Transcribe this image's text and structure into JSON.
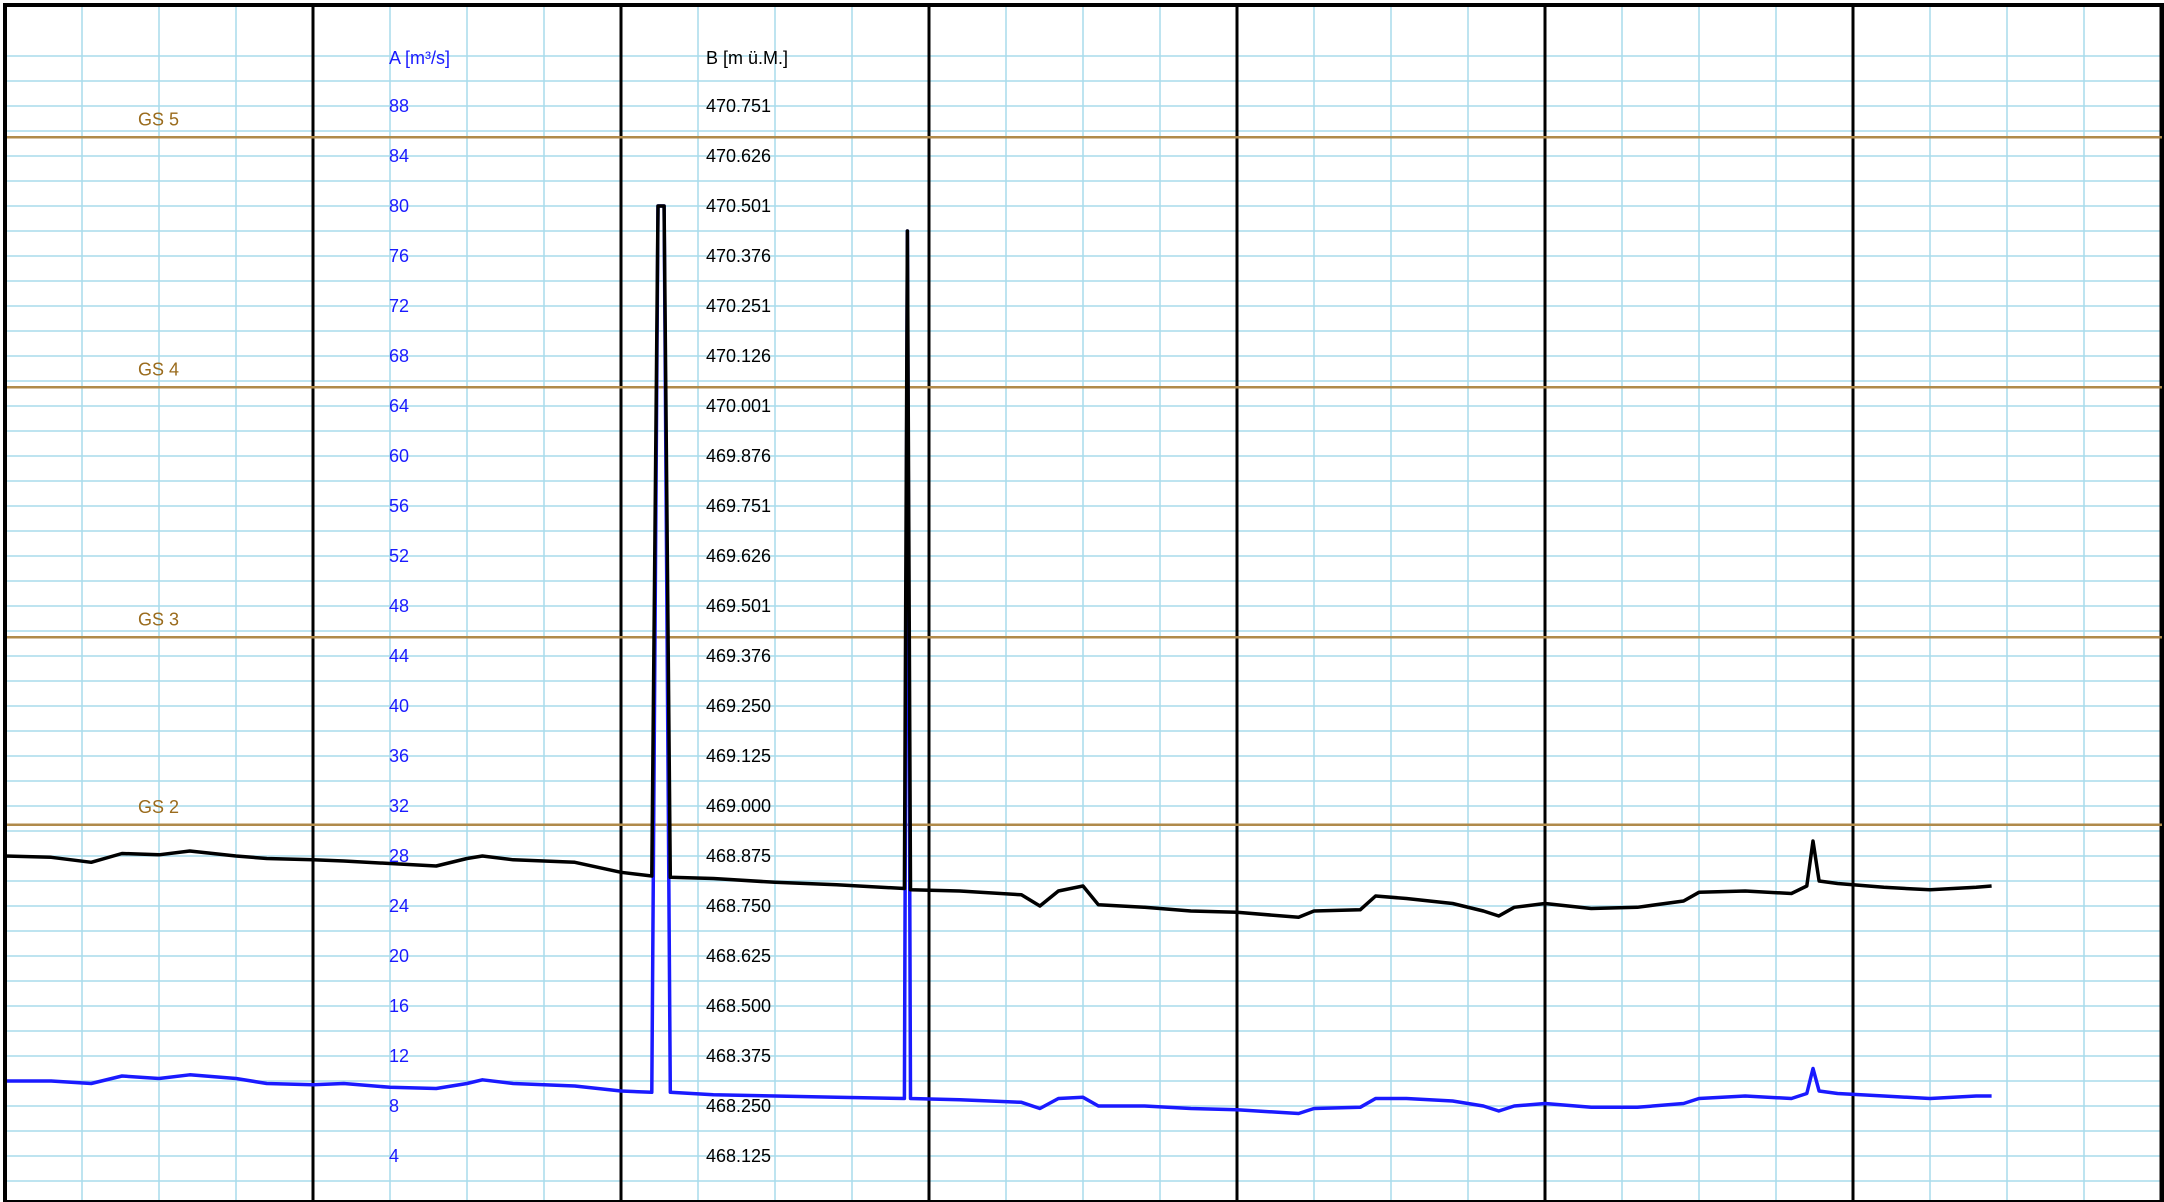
{
  "chart_data": {
    "type": "line",
    "axis_a": {
      "label": "A [m³/s]",
      "ticks": [
        88,
        84,
        80,
        76,
        72,
        68,
        64,
        60,
        56,
        52,
        48,
        44,
        40,
        36,
        32,
        28,
        24,
        20,
        16,
        12,
        8,
        4
      ],
      "range": [
        0,
        92
      ],
      "color": "#1a1aff"
    },
    "axis_b": {
      "label": "B [m ü.M.]",
      "ticks": [
        "470.751",
        "470.626",
        "470.501",
        "470.376",
        "470.251",
        "470.126",
        "470.001",
        "469.876",
        "469.751",
        "469.626",
        "469.501",
        "469.376",
        "469.250",
        "469.125",
        "469.000",
        "468.875",
        "468.750",
        "468.625",
        "468.500",
        "468.375",
        "468.250",
        "468.125"
      ],
      "color": "#000000"
    },
    "thresholds": [
      {
        "label": "GS 5",
        "value": 85.5
      },
      {
        "label": "GS 4",
        "value": 65.5
      },
      {
        "label": "GS 3",
        "value": 45.5
      },
      {
        "label": "GS 2",
        "value": 30.5
      }
    ],
    "threshold_color": "#b08a4a",
    "grid_color": "#a9dcec",
    "major_grid_color": "#000000",
    "x_range": [
      0,
      7
    ],
    "series": [
      {
        "color": "#1a1aff",
        "points": [
          [
            0.0,
            10.0
          ],
          [
            0.15,
            10.0
          ],
          [
            0.28,
            9.8
          ],
          [
            0.38,
            10.4
          ],
          [
            0.5,
            10.2
          ],
          [
            0.6,
            10.5
          ],
          [
            0.75,
            10.2
          ],
          [
            0.85,
            9.8
          ],
          [
            1.0,
            9.7
          ],
          [
            1.1,
            9.8
          ],
          [
            1.25,
            9.5
          ],
          [
            1.4,
            9.4
          ],
          [
            1.5,
            9.8
          ],
          [
            1.55,
            10.1
          ],
          [
            1.65,
            9.8
          ],
          [
            1.85,
            9.6
          ],
          [
            2.0,
            9.2
          ],
          [
            2.1,
            9.1
          ],
          [
            2.12,
            80.0
          ],
          [
            2.14,
            80.0
          ],
          [
            2.16,
            9.1
          ],
          [
            2.3,
            8.9
          ],
          [
            2.5,
            8.8
          ],
          [
            2.7,
            8.7
          ],
          [
            2.92,
            8.6
          ],
          [
            2.93,
            78.0
          ],
          [
            2.94,
            8.6
          ],
          [
            3.1,
            8.5
          ],
          [
            3.3,
            8.3
          ],
          [
            3.36,
            7.8
          ],
          [
            3.42,
            8.6
          ],
          [
            3.5,
            8.7
          ],
          [
            3.55,
            8.0
          ],
          [
            3.7,
            8.0
          ],
          [
            3.85,
            7.8
          ],
          [
            4.0,
            7.7
          ],
          [
            4.2,
            7.4
          ],
          [
            4.25,
            7.8
          ],
          [
            4.4,
            7.9
          ],
          [
            4.45,
            8.6
          ],
          [
            4.55,
            8.6
          ],
          [
            4.7,
            8.4
          ],
          [
            4.8,
            8.0
          ],
          [
            4.85,
            7.6
          ],
          [
            4.9,
            8.0
          ],
          [
            5.0,
            8.2
          ],
          [
            5.15,
            7.9
          ],
          [
            5.3,
            7.9
          ],
          [
            5.45,
            8.2
          ],
          [
            5.5,
            8.6
          ],
          [
            5.65,
            8.8
          ],
          [
            5.8,
            8.6
          ],
          [
            5.85,
            9.0
          ],
          [
            5.87,
            11.0
          ],
          [
            5.89,
            9.2
          ],
          [
            5.95,
            9.0
          ],
          [
            6.1,
            8.8
          ],
          [
            6.25,
            8.6
          ],
          [
            6.4,
            8.8
          ],
          [
            6.45,
            8.8
          ]
        ]
      },
      {
        "color": "#000000",
        "points": [
          [
            0.0,
            28.0
          ],
          [
            0.15,
            27.9
          ],
          [
            0.28,
            27.5
          ],
          [
            0.38,
            28.2
          ],
          [
            0.5,
            28.1
          ],
          [
            0.6,
            28.4
          ],
          [
            0.75,
            28.0
          ],
          [
            0.85,
            27.8
          ],
          [
            1.0,
            27.7
          ],
          [
            1.1,
            27.6
          ],
          [
            1.25,
            27.4
          ],
          [
            1.4,
            27.2
          ],
          [
            1.5,
            27.8
          ],
          [
            1.55,
            28.0
          ],
          [
            1.65,
            27.7
          ],
          [
            1.85,
            27.5
          ],
          [
            2.0,
            26.7
          ],
          [
            2.1,
            26.4
          ],
          [
            2.12,
            80.0
          ],
          [
            2.14,
            80.0
          ],
          [
            2.16,
            26.3
          ],
          [
            2.3,
            26.2
          ],
          [
            2.5,
            25.9
          ],
          [
            2.7,
            25.7
          ],
          [
            2.92,
            25.4
          ],
          [
            2.93,
            78.0
          ],
          [
            2.94,
            25.3
          ],
          [
            3.1,
            25.2
          ],
          [
            3.3,
            24.9
          ],
          [
            3.36,
            24.0
          ],
          [
            3.42,
            25.2
          ],
          [
            3.5,
            25.6
          ],
          [
            3.55,
            24.1
          ],
          [
            3.7,
            23.9
          ],
          [
            3.85,
            23.6
          ],
          [
            4.0,
            23.5
          ],
          [
            4.2,
            23.1
          ],
          [
            4.25,
            23.6
          ],
          [
            4.4,
            23.7
          ],
          [
            4.45,
            24.8
          ],
          [
            4.55,
            24.6
          ],
          [
            4.7,
            24.2
          ],
          [
            4.8,
            23.6
          ],
          [
            4.85,
            23.2
          ],
          [
            4.9,
            23.9
          ],
          [
            5.0,
            24.2
          ],
          [
            5.15,
            23.8
          ],
          [
            5.3,
            23.9
          ],
          [
            5.45,
            24.4
          ],
          [
            5.5,
            25.1
          ],
          [
            5.65,
            25.2
          ],
          [
            5.8,
            25.0
          ],
          [
            5.85,
            25.6
          ],
          [
            5.87,
            29.2
          ],
          [
            5.89,
            26.0
          ],
          [
            5.95,
            25.8
          ],
          [
            6.1,
            25.5
          ],
          [
            6.25,
            25.3
          ],
          [
            6.4,
            25.5
          ],
          [
            6.45,
            25.6
          ]
        ]
      }
    ]
  }
}
